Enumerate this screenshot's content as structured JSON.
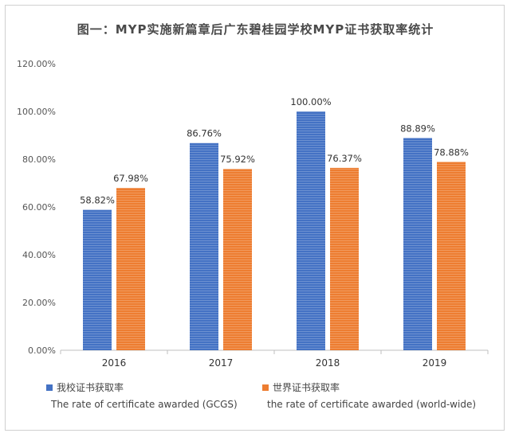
{
  "chart_data": {
    "type": "bar",
    "title": "图一：MYP实施新篇章后广东碧桂园学校MYP证书获取率统计",
    "categories": [
      "2016",
      "2017",
      "2018",
      "2019"
    ],
    "series": [
      {
        "name": "我校证书获取率",
        "name_en": "The rate of certificate awarded (GCGS)",
        "color": "#4472c4",
        "values": [
          58.82,
          86.76,
          100.0,
          88.89
        ],
        "labels": [
          "58.82%",
          "86.76%",
          "100.00%",
          "88.89%"
        ]
      },
      {
        "name": "世界证书获取率",
        "name_en": "the rate of certificate awarded (world-wide)",
        "color": "#ed7d31",
        "values": [
          67.98,
          75.92,
          76.37,
          78.88
        ],
        "labels": [
          "67.98%",
          "75.92%",
          "76.37%",
          "78.88%"
        ]
      }
    ],
    "yticks": [
      "0.00%",
      "20.00%",
      "40.00%",
      "60.00%",
      "80.00%",
      "100.00%",
      "120.00%"
    ],
    "ylim": [
      0,
      120
    ],
    "grid": false,
    "legend_position": "bottom"
  }
}
